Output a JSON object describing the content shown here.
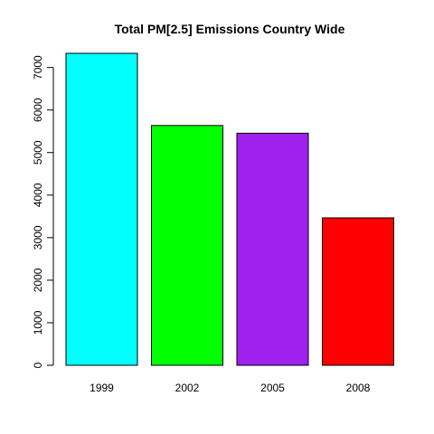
{
  "chart_data": {
    "type": "bar",
    "title": "Total PM[2.5] Emissions Country Wide",
    "xlabel": "",
    "ylabel": "",
    "categories": [
      "1999",
      "2002",
      "2005",
      "2008"
    ],
    "values": [
      7332,
      5636,
      5454,
      3465
    ],
    "bar_colors": [
      "#00FFFF",
      "#00FF00",
      "#A020F0",
      "#FF0000"
    ],
    "ylim": [
      0,
      7332
    ],
    "y_ticks": [
      0,
      1000,
      2000,
      3000,
      4000,
      5000,
      6000,
      7000
    ],
    "grid": false,
    "legend": "none"
  }
}
